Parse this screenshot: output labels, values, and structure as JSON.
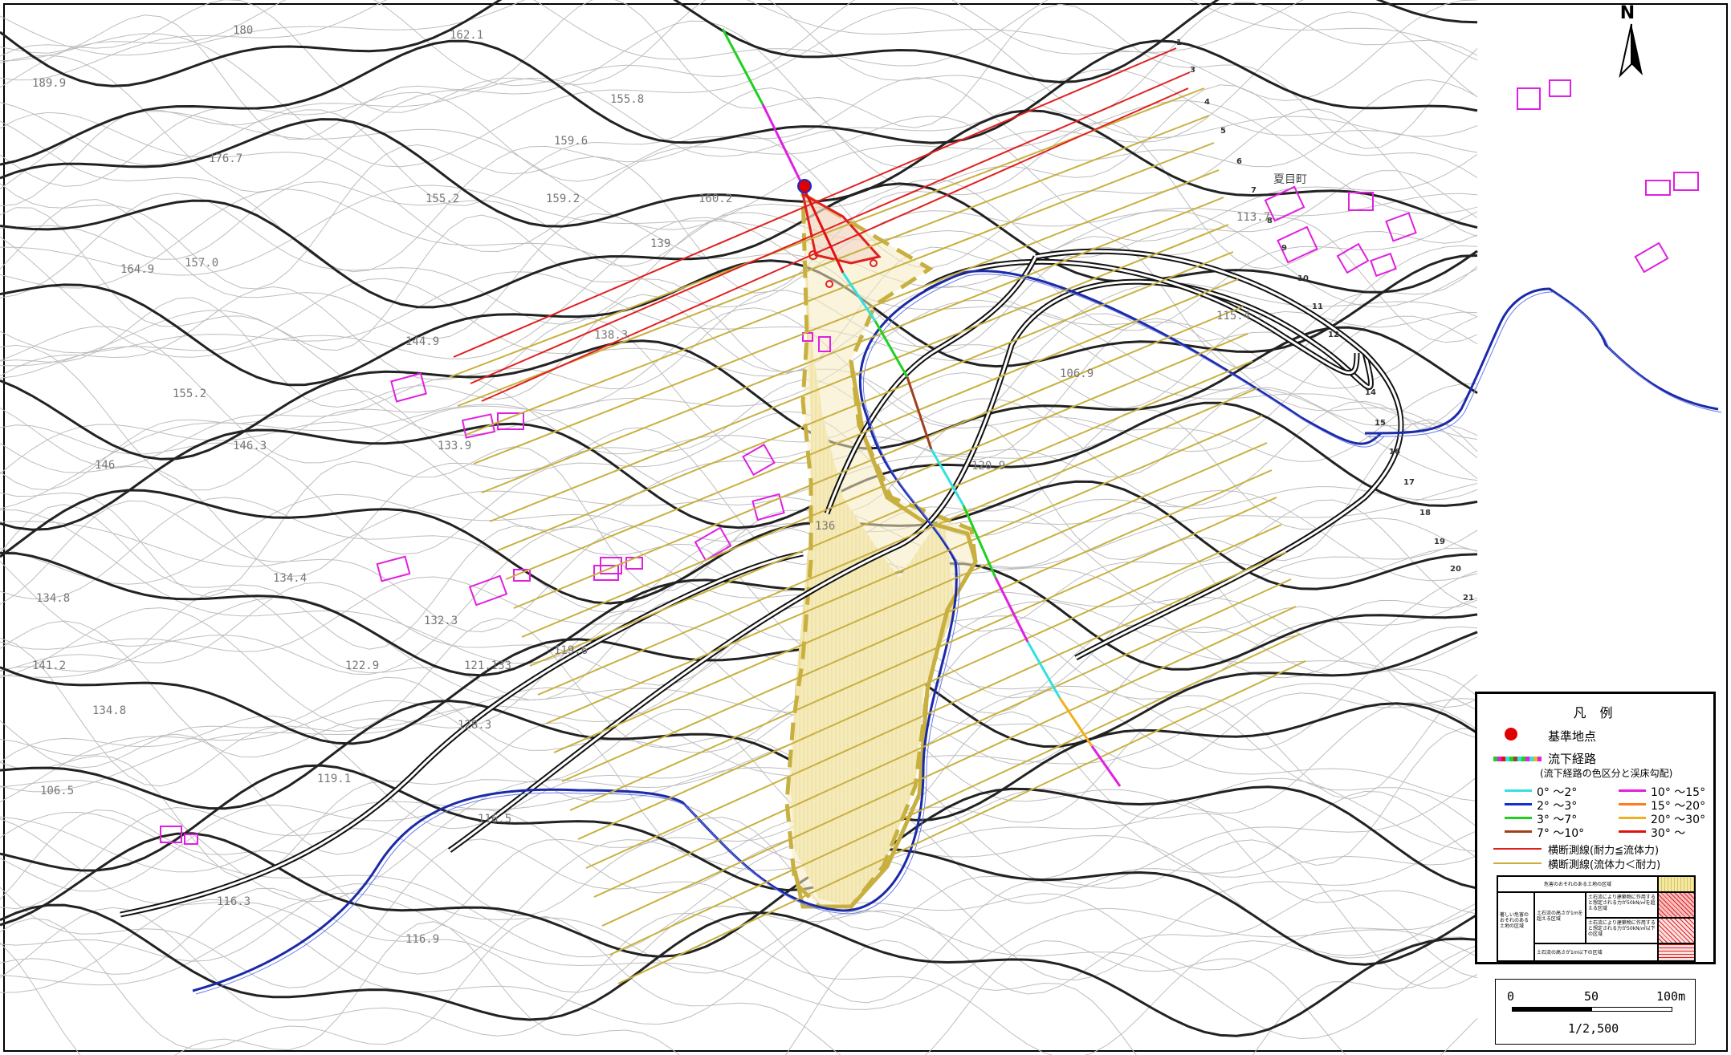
{
  "map": {
    "north_label": "N",
    "elevations": [
      "189.9",
      "180",
      "162.1",
      "176.7",
      "155.8",
      "159.6",
      "155.2",
      "159.2",
      "160.2",
      "157.0",
      "139",
      "164.9",
      "144.9",
      "155.2",
      "138.3",
      "146.3",
      "133.9",
      "146",
      "134.4",
      "134.8",
      "141.2",
      "132.3",
      "122.9",
      "121.133",
      "119.6",
      "128.3",
      "134.8",
      "119.1",
      "116.5",
      "106.5",
      "116.3",
      "116.9",
      "136",
      "120.9",
      "106.9",
      "113.7",
      "115.4"
    ],
    "place_name": "夏目町",
    "cross_section_numbers": [
      "1",
      "3",
      "4",
      "5",
      "6",
      "7",
      "8",
      "9",
      "10",
      "11",
      "12",
      "14",
      "15",
      "16",
      "17",
      "18",
      "19",
      "20",
      "21"
    ]
  },
  "legend": {
    "title": "凡 例",
    "base_point": "基準地点",
    "flow_path": "流下経路",
    "flow_path_note": "(流下経路の色区分と渓床勾配)",
    "gradients": [
      {
        "label": "0° ～2°",
        "color": "#33e0e0"
      },
      {
        "label": "10° ～15°",
        "color": "#e020e0"
      },
      {
        "label": "2° ～3°",
        "color": "#1030d0"
      },
      {
        "label": "15° ～20°",
        "color": "#ff7a20"
      },
      {
        "label": "3° ～7°",
        "color": "#20d020"
      },
      {
        "label": "20° ～30°",
        "color": "#f0b020"
      },
      {
        "label": "7° ～10°",
        "color": "#a04020"
      },
      {
        "label": "30° ～",
        "color": "#e01010"
      }
    ],
    "cross_red": "横断測線(耐力≦流体力)",
    "cross_yellow": "横断測線(流体力＜耐力)",
    "hazard_area": "危害のおそれのある土地の区域",
    "severe_area": "著しい危害のおそれのある土地の区域",
    "height_exceed": "土石流の高さが1mを超える区域",
    "force_over": "土石流により建築物に作用すると想定される力が50kN/㎡を超える区域",
    "force_under": "土石流により建築物に作用すると想定される力が50kN/㎡以下の区域",
    "height_under": "土石流の高さが1m以下の区域",
    "colors": {
      "base_point": "#e00000",
      "red_line": "#e02020",
      "yellow_line": "#c8b040",
      "hazard_fill": "#f2e6a8"
    }
  },
  "scale": {
    "ticks": [
      "0",
      "50",
      "100m"
    ],
    "ratio": "1/2,500"
  }
}
